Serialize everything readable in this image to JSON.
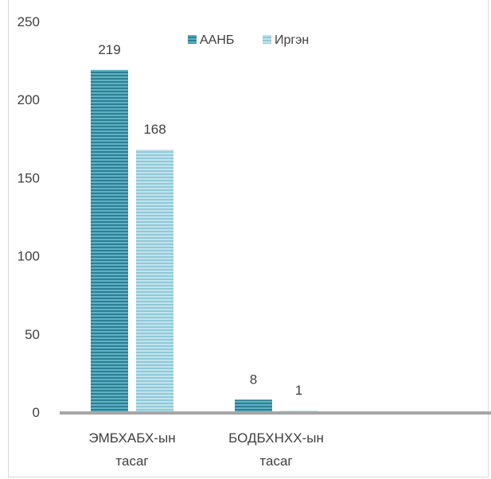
{
  "chart_data": {
    "type": "bar",
    "categories": [
      [
        "ЭМБХАБХ-ын",
        "тасаг"
      ],
      [
        "БОДБХНХХ-ын",
        "тасаг"
      ]
    ],
    "series": [
      {
        "name": "ААНБ",
        "values": [
          219,
          8
        ],
        "color": "#4aa3b8",
        "stripe": "#2e7f93"
      },
      {
        "name": "Иргэн",
        "values": [
          168,
          1
        ],
        "color": "#a9d7e3",
        "stripe": "#7fc0d1"
      }
    ],
    "yticks": [
      "0",
      "50",
      "100",
      "150",
      "200",
      "250"
    ],
    "ylim": [
      0,
      250
    ],
    "grid": false,
    "legend_position": "top-center",
    "data_labels": true
  }
}
